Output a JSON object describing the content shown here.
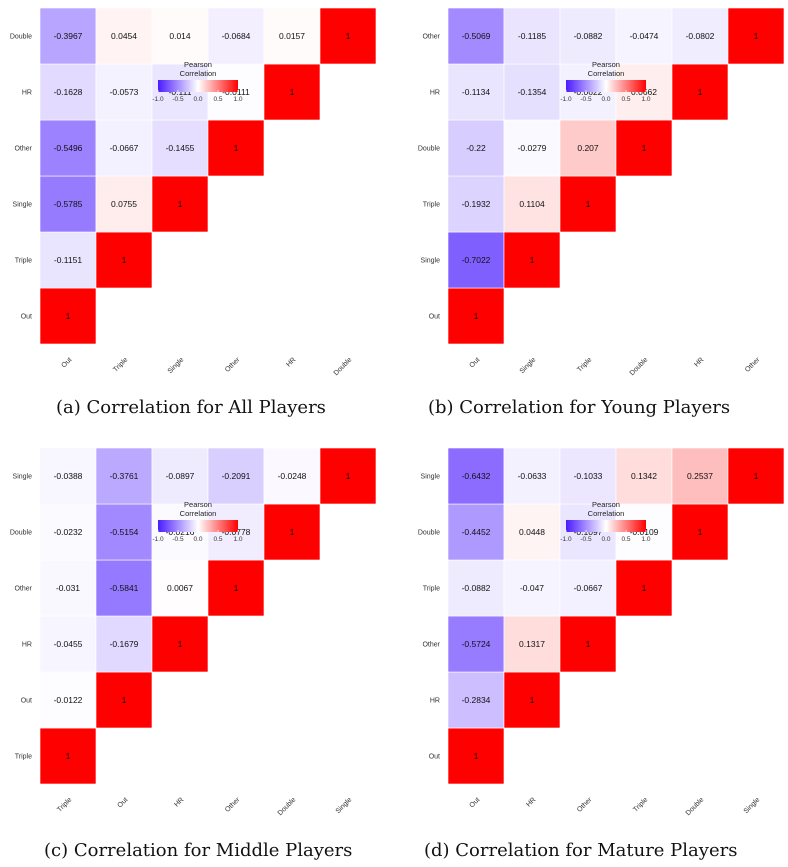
{
  "legend": {
    "title_line1": "Pearson",
    "title_line2": "Correlation",
    "ticks": [
      "-1.0",
      "-0.5",
      "0.0",
      "0.5",
      "1.0"
    ],
    "colors": {
      "low": "#4a1bff",
      "mid": "#ffffff",
      "high": "#ff0000"
    }
  },
  "chart_data": [
    {
      "type": "heatmap",
      "caption": "(a) Correlation for All Players",
      "variables": [
        "Out",
        "Triple",
        "Single",
        "Other",
        "HR",
        "Double"
      ],
      "matrix": [
        [
          1,
          null,
          null,
          null,
          null,
          null
        ],
        [
          -0.1151,
          1,
          null,
          null,
          null,
          null
        ],
        [
          -0.5785,
          0.0755,
          1,
          null,
          null,
          null
        ],
        [
          -0.5496,
          -0.0667,
          -0.1455,
          1,
          null,
          null
        ],
        [
          -0.1628,
          -0.0573,
          -0.111,
          -0.0111,
          1,
          null
        ],
        [
          -0.3967,
          0.0454,
          0.014,
          -0.0684,
          0.0157,
          1
        ]
      ],
      "value_range": [
        -1,
        1
      ],
      "colors": {
        "low": "#4a1bff",
        "mid": "#ffffff",
        "high": "#ff0000"
      }
    },
    {
      "type": "heatmap",
      "caption": "(b) Correlation for Young Players",
      "variables": [
        "Out",
        "Single",
        "Triple",
        "Double",
        "HR",
        "Other"
      ],
      "matrix": [
        [
          1,
          null,
          null,
          null,
          null,
          null
        ],
        [
          -0.7022,
          1,
          null,
          null,
          null,
          null
        ],
        [
          -0.1932,
          0.1104,
          1,
          null,
          null,
          null
        ],
        [
          -0.22,
          -0.0279,
          0.207,
          1,
          null,
          null
        ],
        [
          -0.1134,
          -0.1354,
          -0.0622,
          0.0662,
          1,
          null
        ],
        [
          -0.5069,
          -0.1185,
          -0.0882,
          -0.0474,
          -0.0802,
          1
        ]
      ],
      "value_range": [
        -1,
        1
      ],
      "colors": {
        "low": "#4a1bff",
        "mid": "#ffffff",
        "high": "#ff0000"
      }
    },
    {
      "type": "heatmap",
      "caption": "(c) Correlation for Middle Players",
      "variables": [
        "Triple",
        "Out",
        "HR",
        "Other",
        "Double",
        "Single"
      ],
      "matrix": [
        [
          1,
          null,
          null,
          null,
          null,
          null
        ],
        [
          -0.0122,
          1,
          null,
          null,
          null,
          null
        ],
        [
          -0.0455,
          -0.1679,
          1,
          null,
          null,
          null
        ],
        [
          -0.031,
          -0.5841,
          0.0067,
          1,
          null,
          null
        ],
        [
          -0.0232,
          -0.5154,
          -0.0216,
          -0.0778,
          1,
          null
        ],
        [
          -0.0388,
          -0.3761,
          -0.0897,
          -0.2091,
          -0.0248,
          1
        ]
      ],
      "value_range": [
        -1,
        1
      ],
      "colors": {
        "low": "#4a1bff",
        "mid": "#ffffff",
        "high": "#ff0000"
      }
    },
    {
      "type": "heatmap",
      "caption": "(d) Correlation for Mature Players",
      "variables": [
        "Out",
        "HR",
        "Other",
        "Triple",
        "Double",
        "Single"
      ],
      "matrix": [
        [
          1,
          null,
          null,
          null,
          null,
          null
        ],
        [
          -0.2834,
          1,
          null,
          null,
          null,
          null
        ],
        [
          -0.5724,
          0.1317,
          1,
          null,
          null,
          null
        ],
        [
          -0.0882,
          -0.047,
          -0.0667,
          1,
          null,
          null
        ],
        [
          -0.4452,
          0.0448,
          -0.1097,
          -0.0109,
          1,
          null
        ],
        [
          -0.6432,
          -0.0633,
          -0.1033,
          0.1342,
          0.2537,
          1
        ]
      ],
      "value_range": [
        -1,
        1
      ],
      "colors": {
        "low": "#4a1bff",
        "mid": "#ffffff",
        "high": "#ff0000"
      }
    }
  ]
}
